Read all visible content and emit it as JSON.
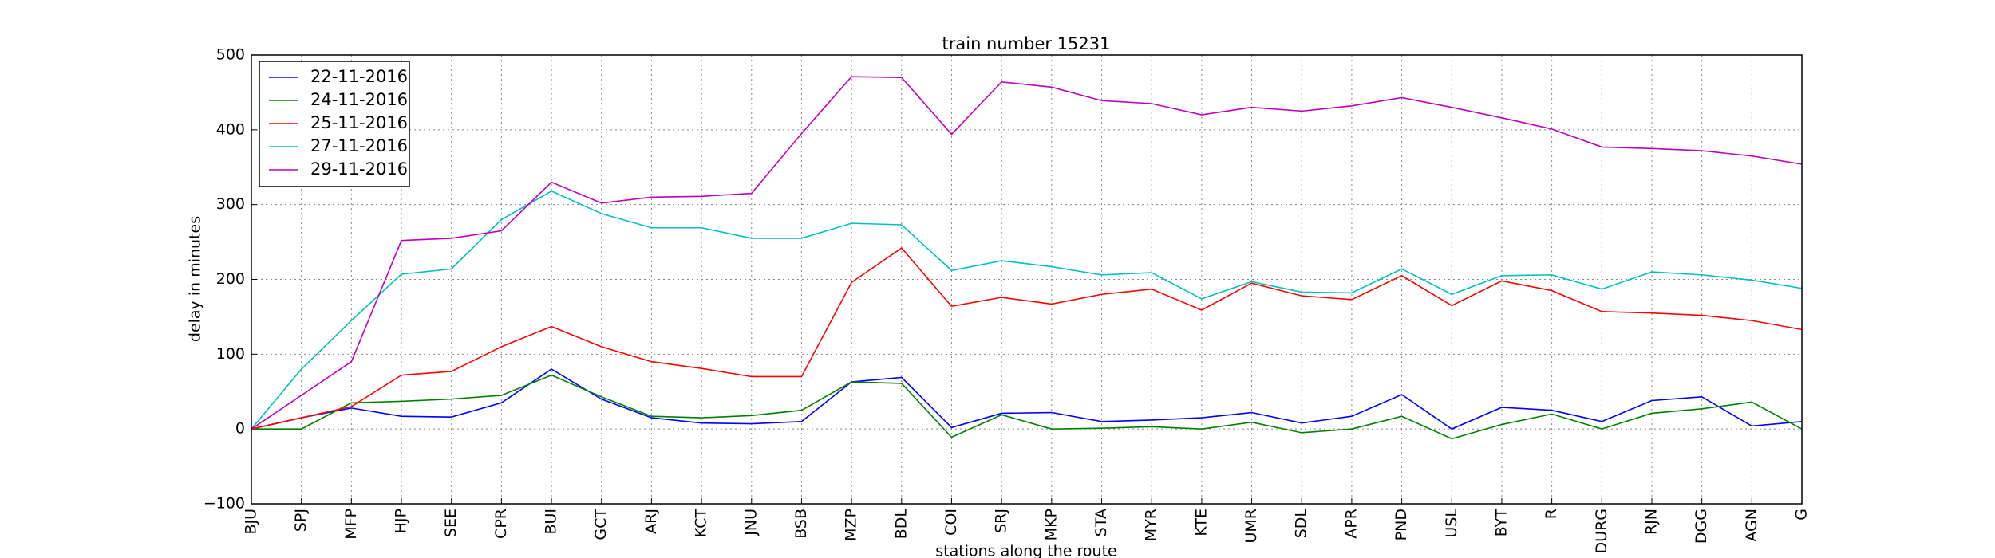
{
  "chart_data": {
    "type": "line",
    "title": "train number 15231",
    "xlabel": "stations along the route",
    "ylabel": "delay in minutes",
    "categories": [
      "BJU",
      "SPJ",
      "MFP",
      "HJP",
      "SEE",
      "CPR",
      "BUI",
      "GCT",
      "ARJ",
      "KCT",
      "JNU",
      "BSB",
      "MZP",
      "BDL",
      "COI",
      "SRJ",
      "MKP",
      "STA",
      "MYR",
      "KTE",
      "UMR",
      "SDL",
      "APR",
      "PND",
      "USL",
      "BYT",
      "R",
      "DURG",
      "RJN",
      "DGG",
      "AGN",
      "G"
    ],
    "series": [
      {
        "name": "22-11-2016",
        "color": "#0000ff",
        "values": [
          0,
          15,
          28,
          17,
          16,
          35,
          80,
          40,
          15,
          8,
          7,
          10,
          63,
          69,
          2,
          21,
          22,
          10,
          12,
          15,
          22,
          8,
          17,
          46,
          0,
          29,
          25,
          10,
          38,
          43,
          4,
          10
        ]
      },
      {
        "name": "24-11-2016",
        "color": "#008000",
        "values": [
          0,
          0,
          35,
          37,
          40,
          45,
          72,
          43,
          17,
          15,
          18,
          25,
          63,
          61,
          -11,
          19,
          0,
          1,
          3,
          0,
          9,
          -5,
          0,
          17,
          -13,
          6,
          20,
          0,
          21,
          27,
          36,
          0
        ]
      },
      {
        "name": "25-11-2016",
        "color": "#ff0000",
        "values": [
          0,
          15,
          30,
          72,
          77,
          110,
          137,
          110,
          90,
          81,
          70,
          70,
          196,
          242,
          164,
          176,
          167,
          180,
          187,
          159,
          195,
          178,
          173,
          205,
          165,
          198,
          185,
          157,
          155,
          152,
          145,
          133
        ]
      },
      {
        "name": "27-11-2016",
        "color": "#00bfbf",
        "values": [
          0,
          80,
          145,
          207,
          214,
          280,
          318,
          288,
          269,
          269,
          255,
          255,
          275,
          273,
          212,
          225,
          217,
          206,
          209,
          174,
          197,
          183,
          182,
          214,
          180,
          205,
          206,
          187,
          210,
          206,
          199,
          188
        ]
      },
      {
        "name": "29-11-2016",
        "color": "#bf00bf",
        "values": [
          0,
          45,
          90,
          252,
          255,
          265,
          330,
          302,
          310,
          311,
          315,
          395,
          471,
          470,
          394,
          464,
          457,
          439,
          435,
          420,
          430,
          425,
          432,
          443,
          430,
          416,
          401,
          377,
          375,
          372,
          365,
          354
        ]
      }
    ],
    "ylim": [
      -100,
      500
    ],
    "yticks": [
      {
        "value": -100,
        "label": "−100"
      },
      0,
      100,
      200,
      300,
      400,
      500
    ],
    "grid": true,
    "legend": "upper left"
  }
}
